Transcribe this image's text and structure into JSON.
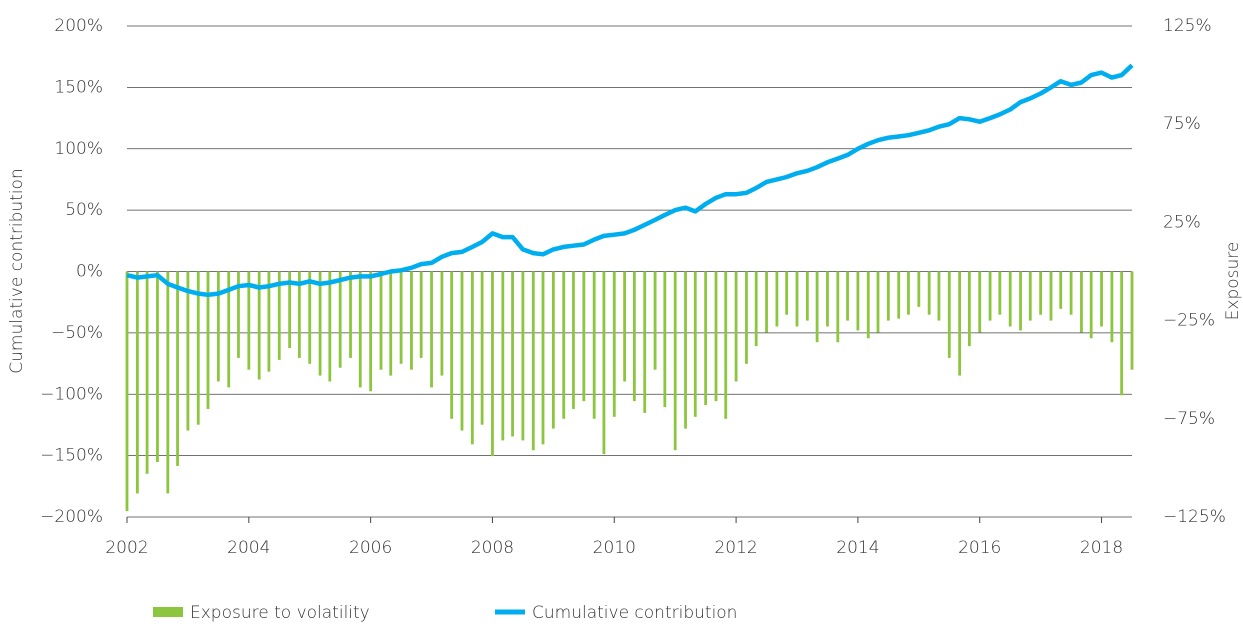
{
  "chart_data": {
    "type": "combo",
    "x": [
      2002,
      2002.17,
      2002.33,
      2002.5,
      2002.67,
      2002.83,
      2003,
      2003.17,
      2003.33,
      2003.5,
      2003.67,
      2003.83,
      2004,
      2004.17,
      2004.33,
      2004.5,
      2004.67,
      2004.83,
      2005,
      2005.17,
      2005.33,
      2005.5,
      2005.67,
      2005.83,
      2006,
      2006.17,
      2006.33,
      2006.5,
      2006.67,
      2006.83,
      2007,
      2007.17,
      2007.33,
      2007.5,
      2007.67,
      2007.83,
      2008,
      2008.17,
      2008.33,
      2008.5,
      2008.67,
      2008.83,
      2009,
      2009.17,
      2009.33,
      2009.5,
      2009.67,
      2009.83,
      2010,
      2010.17,
      2010.33,
      2010.5,
      2010.67,
      2010.83,
      2011,
      2011.17,
      2011.33,
      2011.5,
      2011.67,
      2011.83,
      2012,
      2012.17,
      2012.33,
      2012.5,
      2012.67,
      2012.83,
      2013,
      2013.17,
      2013.33,
      2013.5,
      2013.67,
      2013.83,
      2014,
      2014.17,
      2014.33,
      2014.5,
      2014.67,
      2014.83,
      2015,
      2015.17,
      2015.33,
      2015.5,
      2015.67,
      2015.83,
      2016,
      2016.17,
      2016.33,
      2016.5,
      2016.67,
      2016.83,
      2017,
      2017.17,
      2017.33,
      2017.5,
      2017.67,
      2017.83,
      2018,
      2018.17,
      2018.33,
      2018.5
    ],
    "series": [
      {
        "name": "Exposure to volatility",
        "type": "bar",
        "axis": "y2",
        "color": "#8cc63f",
        "values": [
          -122,
          -113,
          -103,
          -97,
          -113,
          -99,
          -81,
          -78,
          -70,
          -56,
          -59,
          -44,
          -50,
          -55,
          -51,
          -45,
          -39,
          -44,
          -47,
          -53,
          -56,
          -49,
          -44,
          -59,
          -61,
          -50,
          -53,
          -47,
          -50,
          -44,
          -59,
          -53,
          -75,
          -81,
          -88,
          -78,
          -94,
          -86,
          -84,
          -86,
          -91,
          -88,
          -80,
          -75,
          -70,
          -66,
          -75,
          -93,
          -74,
          -56,
          -66,
          -72,
          -50,
          -69,
          -91,
          -80,
          -74,
          -68,
          -66,
          -75,
          -56,
          -47,
          -38,
          -31,
          -28,
          -22,
          -28,
          -25,
          -36,
          -28,
          -36,
          -25,
          -30,
          -34,
          -31,
          -25,
          -24,
          -22,
          -18,
          -22,
          -25,
          -44,
          -53,
          -38,
          -31,
          -25,
          -22,
          -28,
          -30,
          -25,
          -22,
          -25,
          -19,
          -22,
          -31,
          -34,
          -28,
          -36,
          -63,
          -50
        ]
      },
      {
        "name": "Cumulative contribution",
        "type": "line",
        "color": "#00aeef",
        "values": [
          -3,
          -5,
          -4,
          -3,
          -10,
          -13,
          -16,
          -18,
          -19,
          -18,
          -15,
          -12,
          -11,
          -13,
          -12,
          -10,
          -9,
          -10,
          -8,
          -10,
          -9,
          -7,
          -5,
          -4,
          -4,
          -2,
          0,
          1,
          3,
          6,
          7,
          12,
          15,
          16,
          20,
          24,
          31,
          28,
          28,
          18,
          15,
          14,
          18,
          20,
          21,
          22,
          26,
          29,
          30,
          31,
          34,
          38,
          42,
          46,
          50,
          52,
          49,
          55,
          60,
          63,
          63,
          64,
          68,
          73,
          75,
          77,
          80,
          82,
          85,
          89,
          92,
          95,
          100,
          104,
          107,
          109,
          110,
          111,
          113,
          115,
          118,
          120,
          125,
          124,
          122,
          125,
          128,
          132,
          138,
          141,
          145,
          150,
          155,
          152,
          154,
          160,
          162,
          158,
          160,
          168
        ]
      }
    ],
    "y_label": "Cumulative contribution",
    "y2_label": "Exposure",
    "xlim": [
      2002,
      2018.5
    ],
    "xticks": [
      2002,
      2004,
      2006,
      2008,
      2010,
      2012,
      2014,
      2016,
      2018
    ],
    "ylim": [
      -200,
      200
    ],
    "yticks": [
      {
        "value": -200,
        "label": "−200%"
      },
      {
        "value": -150,
        "label": "−150%"
      },
      {
        "value": -100,
        "label": "−100%"
      },
      {
        "value": -50,
        "label": "−50%"
      },
      {
        "value": 0,
        "label": "0%"
      },
      {
        "value": 50,
        "label": "50%"
      },
      {
        "value": 100,
        "label": "100%"
      },
      {
        "value": 150,
        "label": "150%"
      },
      {
        "value": 200,
        "label": "200%"
      }
    ],
    "y2lim": [
      -125,
      125
    ],
    "y2ticks": [
      {
        "value": -125,
        "label": "−125%"
      },
      {
        "value": -75,
        "label": "−75%"
      },
      {
        "value": -25,
        "label": "−25%"
      },
      {
        "value": 25,
        "label": "25%"
      },
      {
        "value": 75,
        "label": "75%"
      },
      {
        "value": 125,
        "label": "125%"
      }
    ],
    "grid": true,
    "legend": "bottom"
  }
}
